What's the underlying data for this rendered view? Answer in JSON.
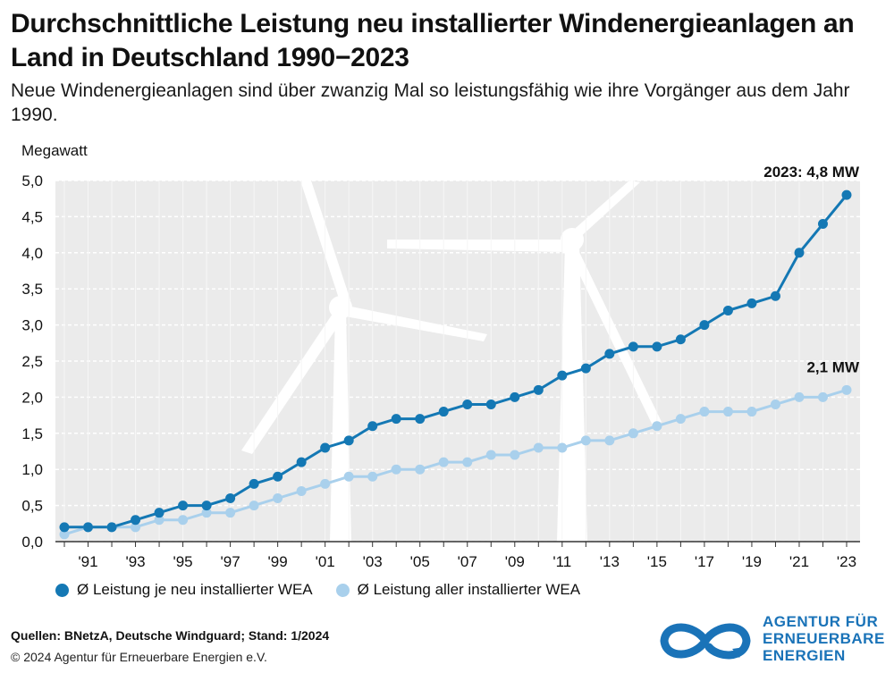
{
  "header": {
    "title": "Durchschnittliche Leistung neu installierter Windenergieanlagen an Land in Deutschland 1990−2023",
    "subtitle": "Neue Windenergieanlagen sind über zwanzig Mal so leistungsfähig wie ihre Vorgänger aus dem Jahr 1990."
  },
  "colors": {
    "series_new": "#1478b4",
    "series_all": "#a9d0ec",
    "plot_bg": "#ebebeb",
    "grid": "#ffffff",
    "logo": "#1a73b8"
  },
  "chart_data": {
    "type": "line",
    "title": "Durchschnittliche Leistung neu installierter Windenergieanlagen an Land in Deutschland 1990−2023",
    "ylabel": "Megawatt",
    "xlabel": "",
    "ylim": [
      0,
      5
    ],
    "yticks": [
      "0,0",
      "0,5",
      "1,0",
      "1,5",
      "2,0",
      "2,5",
      "3,0",
      "3,5",
      "4,0",
      "4,5",
      "5,0"
    ],
    "grid": true,
    "legend_position": "bottom",
    "x": [
      1990,
      1991,
      1992,
      1993,
      1994,
      1995,
      1996,
      1997,
      1998,
      1999,
      2000,
      2001,
      2002,
      2003,
      2004,
      2005,
      2006,
      2007,
      2008,
      2009,
      2010,
      2011,
      2012,
      2013,
      2014,
      2015,
      2016,
      2017,
      2018,
      2019,
      2020,
      2021,
      2022,
      2023
    ],
    "xtick_labels": [
      {
        "year": 1991,
        "label": "'91"
      },
      {
        "year": 1993,
        "label": "'93"
      },
      {
        "year": 1995,
        "label": "'95"
      },
      {
        "year": 1997,
        "label": "'97"
      },
      {
        "year": 1999,
        "label": "'99"
      },
      {
        "year": 2001,
        "label": "'01"
      },
      {
        "year": 2003,
        "label": "'03"
      },
      {
        "year": 2005,
        "label": "'05"
      },
      {
        "year": 2007,
        "label": "'07"
      },
      {
        "year": 2009,
        "label": "'09"
      },
      {
        "year": 2011,
        "label": "'11"
      },
      {
        "year": 2013,
        "label": "'13"
      },
      {
        "year": 2015,
        "label": "'15"
      },
      {
        "year": 2017,
        "label": "'17"
      },
      {
        "year": 2019,
        "label": "'19"
      },
      {
        "year": 2021,
        "label": "'21"
      },
      {
        "year": 2023,
        "label": "'23"
      }
    ],
    "series": [
      {
        "name": "Ø Leistung je neu installierter WEA",
        "key": "new",
        "values": [
          0.2,
          0.2,
          0.2,
          0.3,
          0.4,
          0.5,
          0.5,
          0.6,
          0.8,
          0.9,
          1.1,
          1.3,
          1.4,
          1.6,
          1.7,
          1.7,
          1.8,
          1.9,
          1.9,
          2.0,
          2.1,
          2.3,
          2.4,
          2.6,
          2.7,
          2.7,
          2.8,
          3.0,
          3.2,
          3.3,
          3.4,
          4.0,
          4.4,
          4.8
        ]
      },
      {
        "name": "Ø Leistung aller installierter WEA",
        "key": "all",
        "values": [
          0.1,
          0.2,
          0.2,
          0.2,
          0.3,
          0.3,
          0.4,
          0.4,
          0.5,
          0.6,
          0.7,
          0.8,
          0.9,
          0.9,
          1.0,
          1.0,
          1.1,
          1.1,
          1.2,
          1.2,
          1.3,
          1.3,
          1.4,
          1.4,
          1.5,
          1.6,
          1.7,
          1.8,
          1.8,
          1.8,
          1.9,
          2.0,
          2.0,
          2.1
        ]
      }
    ],
    "annotations": [
      {
        "series": "new",
        "year": 2023,
        "text": "2023: 4,8 MW"
      },
      {
        "series": "all",
        "year": 2023,
        "text": "2,1 MW"
      }
    ]
  },
  "footer": {
    "sources": "Quellen: BNetzA, Deutsche Windguard;  Stand: 1/2024",
    "copyright": "© 2024 Agentur für Erneuerbare Energien e.V."
  },
  "logo": {
    "line1": "AGENTUR FÜR",
    "line2": "ERNEUERBARE",
    "line3": "ENERGIEN"
  }
}
